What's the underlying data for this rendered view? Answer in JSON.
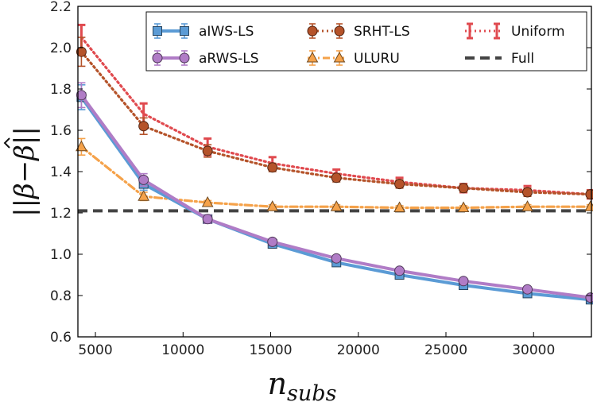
{
  "chart_data": {
    "type": "line",
    "title": "",
    "xlabel": "n_subs",
    "ylabel": "||β − β̂||",
    "xlim": [
      4000,
      33300
    ],
    "ylim": [
      0.6,
      2.2
    ],
    "xticks": [
      5000,
      10000,
      15000,
      20000,
      25000,
      30000
    ],
    "xtick_labels": [
      "5000",
      "10000",
      "15000",
      "20000",
      "25000",
      "30000"
    ],
    "yticks": [
      0.6,
      0.8,
      1.0,
      1.2,
      1.4,
      1.6,
      1.8,
      2.0,
      2.2
    ],
    "ytick_labels": [
      "0.6",
      "0.8",
      "1.0",
      "1.2",
      "1.4",
      "1.6",
      "1.8",
      "2.0",
      "2.2"
    ],
    "legend_position": "top-right",
    "x": [
      4200,
      7750,
      11400,
      15100,
      18750,
      22350,
      26000,
      29650,
      33250
    ],
    "series": [
      {
        "name": "aIWS-LS",
        "color": "#5b9bd5",
        "marker": "square",
        "linestyle": "solid",
        "values": [
          1.76,
          1.34,
          1.17,
          1.05,
          0.96,
          0.9,
          0.85,
          0.81,
          0.78
        ],
        "errors": [
          0.06,
          0.03,
          0.02,
          0.01,
          0.01,
          0.01,
          0.01,
          0.01,
          0.01
        ]
      },
      {
        "name": "aRWS-LS",
        "color": "#b07cc6",
        "marker": "circle",
        "linestyle": "solid",
        "values": [
          1.77,
          1.36,
          1.17,
          1.06,
          0.98,
          0.92,
          0.87,
          0.83,
          0.79
        ],
        "errors": [
          0.06,
          0.03,
          0.02,
          0.01,
          0.01,
          0.01,
          0.01,
          0.01,
          0.01
        ]
      },
      {
        "name": "SRHT-LS",
        "color": "#b5532a",
        "marker": "circle",
        "linestyle": "dotted",
        "values": [
          1.98,
          1.62,
          1.5,
          1.42,
          1.37,
          1.34,
          1.32,
          1.3,
          1.29
        ],
        "errors": [
          0.07,
          0.04,
          0.03,
          0.02,
          0.02,
          0.02,
          0.02,
          0.02,
          0.02
        ]
      },
      {
        "name": "ULURU",
        "color": "#f5a24a",
        "marker": "triangle",
        "linestyle": "dashdot",
        "values": [
          1.52,
          1.28,
          1.25,
          1.23,
          1.23,
          1.225,
          1.225,
          1.23,
          1.23
        ],
        "errors": [
          0.04,
          0.02,
          0.01,
          0.01,
          0.01,
          0.01,
          0.01,
          0.01,
          0.01
        ]
      },
      {
        "name": "Uniform",
        "color": "#e04a4f",
        "marker": "none",
        "linestyle": "dotted",
        "values": [
          2.05,
          1.68,
          1.52,
          1.44,
          1.39,
          1.35,
          1.32,
          1.31,
          1.29
        ],
        "errors": [
          0.06,
          0.05,
          0.04,
          0.03,
          0.02,
          0.02,
          0.02,
          0.02,
          0.02
        ]
      },
      {
        "name": "Full",
        "color": "#444444",
        "marker": "none",
        "linestyle": "dashed",
        "values": [
          1.21,
          1.21,
          1.21,
          1.21,
          1.21,
          1.21,
          1.21,
          1.21,
          1.21
        ],
        "errors": null
      }
    ]
  }
}
